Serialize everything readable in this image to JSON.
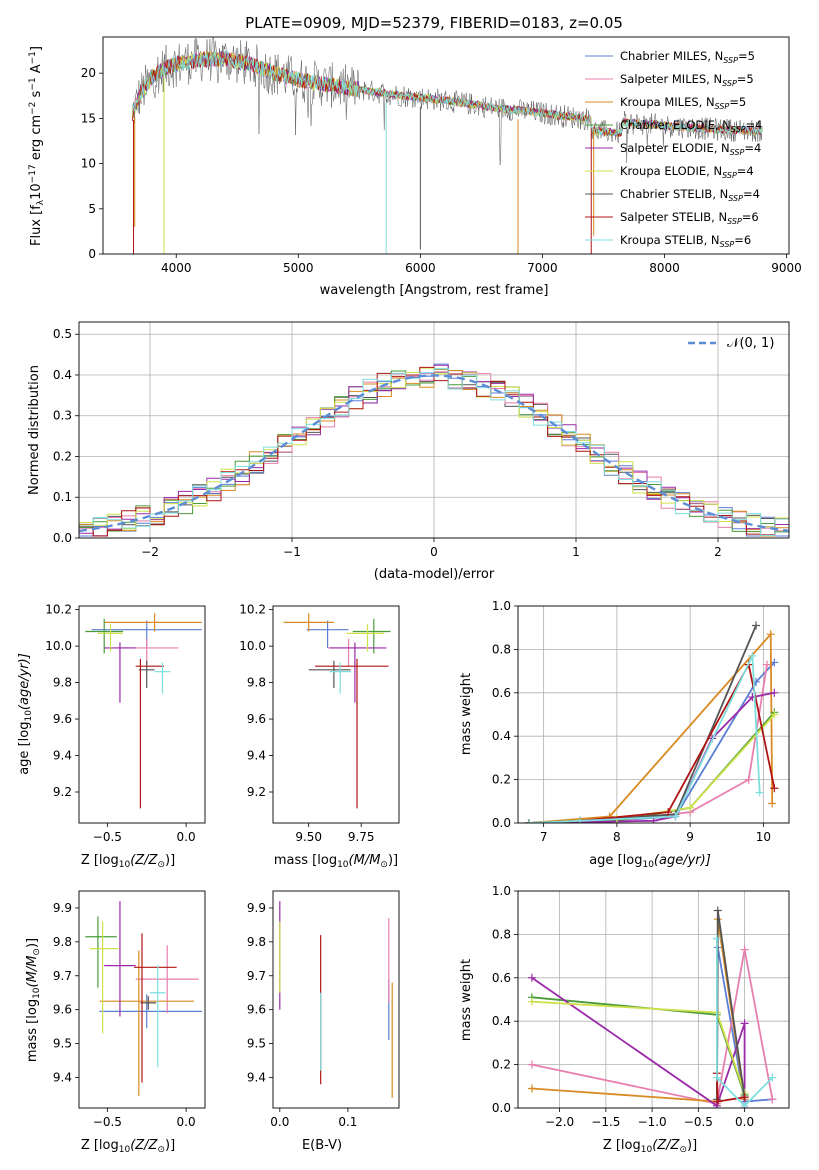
{
  "figure": {
    "title": "PLATE=0909, MJD=52379, FIBERID=0183, z=0.05"
  },
  "series": [
    {
      "name": "Chabrier MILES, N$_{SSP}$=5",
      "label_main": "Chabrier MILES, N",
      "label_sub": "SSP",
      "label_tail": "=5",
      "color": "#5b7fd6"
    },
    {
      "name": "Salpeter MILES, N$_{SSP}$=5",
      "label_main": "Salpeter MILES, N",
      "label_sub": "SSP",
      "label_tail": "=5",
      "color": "#e87fae"
    },
    {
      "name": "Kroupa MILES, N$_{SSP}$=5",
      "label_main": "Kroupa MILES, N",
      "label_sub": "SSP",
      "label_tail": "=5",
      "color": "#d98a22"
    },
    {
      "name": "Chabrier ELODIE, N$_{SSP}$=4",
      "label_main": "Chabrier ELODIE, N",
      "label_sub": "SSP",
      "label_tail": "=4",
      "color": "#4a9b3a"
    },
    {
      "name": "Salpeter ELODIE, N$_{SSP}$=4",
      "label_main": "Salpeter ELODIE, N",
      "label_sub": "SSP",
      "label_tail": "=4",
      "color": "#9b2aa8"
    },
    {
      "name": "Kroupa ELODIE, N$_{SSP}$=4",
      "label_main": "Kroupa ELODIE, N",
      "label_sub": "SSP",
      "label_tail": "=4",
      "color": "#cfe04a"
    },
    {
      "name": "Chabrier STELIB, N$_{SSP}$=4",
      "label_main": "Chabrier STELIB, N",
      "label_sub": "SSP",
      "label_tail": "=4",
      "color": "#555555"
    },
    {
      "name": "Salpeter STELIB, N$_{SSP}$=6",
      "label_main": "Salpeter STELIB, N",
      "label_sub": "SSP",
      "label_tail": "=6",
      "color": "#b01414"
    },
    {
      "name": "Kroupa STELIB, N$_{SSP}$=6",
      "label_main": "Kroupa STELIB, N",
      "label_sub": "SSP",
      "label_tail": "=6",
      "color": "#7fdede"
    }
  ],
  "chart_data": [
    {
      "id": "spectrum",
      "type": "line",
      "xlabel": "wavelength [Angstrom, rest frame]",
      "ylabel_main": "Flux [f",
      "ylabel_rest": "10",
      "ylabel_exp1": "−17",
      "ylabel_mid": " erg cm",
      "ylabel_exp2": "−2",
      "ylabel_mid2": " s",
      "ylabel_exp3": "−1",
      "ylabel_end": " A",
      "ylabel_exp4": "−1",
      "ylabel_close": "]",
      "xlim": [
        3400,
        9020
      ],
      "ylim": [
        0,
        24
      ],
      "xticks": [
        4000,
        5000,
        6000,
        7000,
        8000,
        9000
      ],
      "yticks": [
        0,
        5,
        10,
        15,
        20
      ],
      "grid": false,
      "legend": "upper-right",
      "continuum": {
        "x": [
          3640,
          3700,
          3800,
          3900,
          4000,
          4200,
          4400,
          4600,
          4800,
          5000,
          5200,
          5400,
          5600,
          5800,
          6000,
          6200,
          6400,
          6600,
          6800,
          7000,
          7200,
          7400,
          7600,
          7800,
          8000,
          8200,
          8400,
          8600,
          8800
        ],
        "y": [
          15.5,
          17.5,
          19.5,
          20.5,
          21.0,
          21.5,
          21.6,
          21.0,
          20.0,
          19.3,
          18.8,
          18.4,
          18.0,
          17.6,
          17.3,
          17.0,
          16.6,
          16.2,
          15.9,
          15.6,
          15.2,
          14.9,
          14.6,
          14.4,
          14.2,
          14.0,
          13.8,
          13.7,
          13.6
        ]
      },
      "dips": [
        {
          "x": 3650,
          "y": 0
        },
        {
          "x": 3660,
          "y": 3
        },
        {
          "x": 3900,
          "y": 0
        },
        {
          "x": 5720,
          "y": 0
        },
        {
          "x": 6000,
          "y": 0.5
        },
        {
          "x": 6800,
          "y": 0
        },
        {
          "x": 7400,
          "y": 0
        },
        {
          "x": 7420,
          "y": 2
        }
      ]
    },
    {
      "id": "residuals",
      "type": "step-histogram",
      "xlabel": "(data-model)/error",
      "ylabel": "Normed distribution",
      "xlim": [
        -2.5,
        2.5
      ],
      "ylim": [
        0,
        0.53
      ],
      "xticks": [
        -2,
        -1,
        0,
        1,
        2
      ],
      "yticks": [
        0.0,
        0.1,
        0.2,
        0.3,
        0.4,
        0.5
      ],
      "grid": true,
      "legend": "upper-right",
      "reference_label": "$\\mathcal{N}(0,1)$",
      "reference_label_display": "𝒩(0, 1)",
      "reference": {
        "name": "N(0,1)",
        "mean": 0,
        "sigma": 1,
        "color": "#5b8ed6"
      },
      "bin_width": 0.1
    },
    {
      "id": "age_vs_Z",
      "type": "errorbar",
      "xlabel_main": "Z [log",
      "xlabel_sub": "10",
      "xlabel_arg": "(Z/Z",
      "xlabel_sun": "⊙",
      "xlabel_close": ")]",
      "ylabel_main": "age  [log",
      "ylabel_sub": "10",
      "ylabel_arg": "(age/yr)]",
      "xlim": [
        -0.68,
        0.12
      ],
      "ylim": [
        9.03,
        10.22
      ],
      "xticks": [
        -0.5,
        0.0
      ],
      "yticks": [
        9.2,
        9.4,
        9.6,
        9.8,
        10.0,
        10.2
      ],
      "points": [
        {
          "x": -0.25,
          "y": 10.09,
          "xerr": [
            0.35,
            0.35
          ],
          "yerr": [
            0.1,
            0.05
          ],
          "series": 0
        },
        {
          "x": -0.25,
          "y": 9.99,
          "xerr": [
            0.2,
            0.2
          ],
          "yerr": [
            0.1,
            0.05
          ],
          "series": 1
        },
        {
          "x": -0.2,
          "y": 10.13,
          "xerr": [
            0.32,
            0.3
          ],
          "yerr": [
            0.05,
            0.05
          ],
          "series": 2
        },
        {
          "x": -0.52,
          "y": 10.08,
          "xerr": [
            0.12,
            0.12
          ],
          "yerr": [
            0.12,
            0.07
          ],
          "series": 3
        },
        {
          "x": -0.42,
          "y": 9.99,
          "xerr": [
            0.1,
            0.1
          ],
          "yerr": [
            0.3,
            0.03
          ],
          "series": 4
        },
        {
          "x": -0.48,
          "y": 10.07,
          "xerr": [
            0.08,
            0.08
          ],
          "yerr": [
            0.1,
            0.05
          ],
          "series": 5
        },
        {
          "x": -0.25,
          "y": 9.87,
          "xerr": [
            0.05,
            0.05
          ],
          "yerr": [
            0.1,
            0.05
          ],
          "series": 6
        },
        {
          "x": -0.29,
          "y": 9.89,
          "xerr": [
            0.03,
            0.15
          ],
          "yerr": [
            0.78,
            0.04
          ],
          "series": 7
        },
        {
          "x": -0.15,
          "y": 9.86,
          "xerr": [
            0.05,
            0.05
          ],
          "yerr": [
            0.12,
            0.05
          ],
          "series": 8
        }
      ]
    },
    {
      "id": "age_vs_mass",
      "type": "errorbar",
      "xlabel_main": "mass [log",
      "xlabel_sub": "10",
      "xlabel_arg": "(M/M",
      "xlabel_sun": "⊙",
      "xlabel_close": ")]",
      "xlim": [
        9.33,
        9.93
      ],
      "ylim": [
        9.03,
        10.22
      ],
      "xticks": [
        9.5,
        9.75
      ],
      "yticks": [
        9.2,
        9.4,
        9.6,
        9.8,
        10.0,
        10.2
      ],
      "points": [
        {
          "x": 9.59,
          "y": 10.09,
          "xerr": [
            0.1,
            0.1
          ],
          "yerr": [
            0.1,
            0.05
          ],
          "series": 0
        },
        {
          "x": 9.69,
          "y": 9.99,
          "xerr": [
            0.1,
            0.08
          ],
          "yerr": [
            0.1,
            0.05
          ],
          "series": 1
        },
        {
          "x": 9.5,
          "y": 10.13,
          "xerr": [
            0.12,
            0.12
          ],
          "yerr": [
            0.05,
            0.05
          ],
          "series": 2
        },
        {
          "x": 9.81,
          "y": 10.08,
          "xerr": [
            0.1,
            0.08
          ],
          "yerr": [
            0.12,
            0.07
          ],
          "series": 3
        },
        {
          "x": 9.72,
          "y": 9.99,
          "xerr": [
            0.12,
            0.15
          ],
          "yerr": [
            0.3,
            0.03
          ],
          "series": 4
        },
        {
          "x": 9.78,
          "y": 10.07,
          "xerr": [
            0.1,
            0.08
          ],
          "yerr": [
            0.1,
            0.05
          ],
          "series": 5
        },
        {
          "x": 9.62,
          "y": 9.87,
          "xerr": [
            0.12,
            0.08
          ],
          "yerr": [
            0.1,
            0.05
          ],
          "series": 6
        },
        {
          "x": 9.73,
          "y": 9.89,
          "xerr": [
            0.2,
            0.15
          ],
          "yerr": [
            0.78,
            0.04
          ],
          "series": 7
        },
        {
          "x": 9.65,
          "y": 9.86,
          "xerr": [
            0.05,
            0.05
          ],
          "yerr": [
            0.12,
            0.05
          ],
          "series": 8
        }
      ]
    },
    {
      "id": "mass_weight_vs_age",
      "type": "line",
      "xlabel_main": "age  [log",
      "xlabel_sub": "10",
      "xlabel_arg": "(age/yr)]",
      "ylabel": "mass weight",
      "xlim": [
        6.65,
        10.35
      ],
      "ylim": [
        0,
        1.0
      ],
      "xticks": [
        7,
        8,
        9,
        10
      ],
      "yticks": [
        0.0,
        0.2,
        0.4,
        0.6,
        0.8,
        1.0
      ],
      "grid": true,
      "lines": [
        {
          "series": 0,
          "x": [
            6.8,
            7.9,
            8.8,
            9.9,
            10.15
          ],
          "y": [
            0.0,
            0.01,
            0.03,
            0.65,
            0.74
          ]
        },
        {
          "series": 1,
          "x": [
            6.8,
            8.0,
            9.0,
            9.8,
            10.05
          ],
          "y": [
            0.0,
            0.01,
            0.05,
            0.2,
            0.73
          ]
        },
        {
          "series": 2,
          "x": [
            6.8,
            7.9,
            10.1,
            10.12
          ],
          "y": [
            0.0,
            0.03,
            0.87,
            0.09
          ]
        },
        {
          "series": 3,
          "x": [
            6.8,
            8.0,
            9.0,
            10.15
          ],
          "y": [
            0.0,
            0.01,
            0.07,
            0.51
          ]
        },
        {
          "series": 4,
          "x": [
            6.8,
            8.5,
            8.8,
            9.3,
            9.85,
            10.15
          ],
          "y": [
            0.0,
            0.01,
            0.03,
            0.39,
            0.58,
            0.6
          ]
        },
        {
          "series": 5,
          "x": [
            6.8,
            8.0,
            9.0,
            10.15
          ],
          "y": [
            0.0,
            0.02,
            0.07,
            0.5
          ]
        },
        {
          "series": 6,
          "x": [
            6.8,
            7.5,
            8.8,
            9.9
          ],
          "y": [
            0.0,
            0.01,
            0.04,
            0.91
          ]
        },
        {
          "series": 7,
          "x": [
            6.8,
            7.5,
            8.7,
            9.8,
            10.15
          ],
          "y": [
            0.0,
            0.01,
            0.05,
            0.73,
            0.16
          ]
        },
        {
          "series": 8,
          "x": [
            6.8,
            7.5,
            8.8,
            9.85,
            9.95
          ],
          "y": [
            0.0,
            0.01,
            0.03,
            0.77,
            0.14
          ]
        }
      ]
    },
    {
      "id": "mass_vs_Z",
      "type": "errorbar",
      "xlabel_main": "Z [log",
      "xlabel_sub": "10",
      "xlabel_arg": "(Z/Z",
      "xlabel_sun": "⊙",
      "xlabel_close": ")]",
      "ylabel_main": "mass [log",
      "ylabel_sub": "10",
      "ylabel_arg": "(M/M",
      "ylabel_sun": "⊙",
      "ylabel_close": ")]",
      "xlim": [
        -0.68,
        0.12
      ],
      "ylim": [
        9.31,
        9.95
      ],
      "xticks": [
        -0.5,
        0.0
      ],
      "yticks": [
        9.4,
        9.5,
        9.6,
        9.7,
        9.8,
        9.9
      ],
      "points": [
        {
          "x": -0.25,
          "y": 9.595,
          "xerr": [
            0.3,
            0.35
          ],
          "yerr": [
            0.05,
            0.05
          ],
          "series": 0
        },
        {
          "x": -0.12,
          "y": 9.69,
          "xerr": [
            0.2,
            0.2
          ],
          "yerr": [
            0.1,
            0.1
          ],
          "series": 1
        },
        {
          "x": -0.3,
          "y": 9.625,
          "xerr": [
            0.25,
            0.35
          ],
          "yerr": [
            0.28,
            0.15
          ],
          "series": 2
        },
        {
          "x": -0.56,
          "y": 9.815,
          "xerr": [
            0.08,
            0.12
          ],
          "yerr": [
            0.15,
            0.06
          ],
          "series": 3
        },
        {
          "x": -0.42,
          "y": 9.73,
          "xerr": [
            0.1,
            0.1
          ],
          "yerr": [
            0.15,
            0.19
          ],
          "series": 4
        },
        {
          "x": -0.53,
          "y": 9.78,
          "xerr": [
            0.08,
            0.1
          ],
          "yerr": [
            0.25,
            0.08
          ],
          "series": 5
        },
        {
          "x": -0.24,
          "y": 9.62,
          "xerr": [
            0.05,
            0.05
          ],
          "yerr": [
            0.02,
            0.02
          ],
          "series": 6
        },
        {
          "x": -0.28,
          "y": 9.725,
          "xerr": [
            0.05,
            0.22
          ],
          "yerr": [
            0.34,
            0.1
          ],
          "series": 7
        },
        {
          "x": -0.18,
          "y": 9.65,
          "xerr": [
            0.05,
            0.05
          ],
          "yerr": [
            0.22,
            0.08
          ],
          "series": 8
        }
      ]
    },
    {
      "id": "mass_vs_EBV",
      "type": "errorbar",
      "xlabel": "E(B-V)",
      "xlim": [
        -0.01,
        0.175
      ],
      "ylim": [
        9.31,
        9.95
      ],
      "xticks": [
        0.0,
        0.1
      ],
      "yticks": [
        9.4,
        9.5,
        9.6,
        9.7,
        9.8,
        9.9
      ],
      "points": [
        {
          "x": 0.0,
          "y": 9.75,
          "xerr": [
            0,
            0
          ],
          "yerr": [
            0.15,
            0.17
          ],
          "series": 4
        },
        {
          "x": 0.0,
          "y": 9.78,
          "xerr": [
            0,
            0
          ],
          "yerr": [
            0.13,
            0.08
          ],
          "series": 5
        },
        {
          "x": 0.06,
          "y": 9.7,
          "xerr": [
            0,
            0
          ],
          "yerr": [
            0.32,
            0.12
          ],
          "series": 7
        },
        {
          "x": 0.06,
          "y": 9.6,
          "xerr": [
            0,
            0
          ],
          "yerr": [
            0.18,
            0.05
          ],
          "series": 8
        },
        {
          "x": 0.16,
          "y": 9.59,
          "xerr": [
            0,
            0
          ],
          "yerr": [
            0.08,
            0.1
          ],
          "series": 0
        },
        {
          "x": 0.16,
          "y": 9.72,
          "xerr": [
            0,
            0
          ],
          "yerr": [
            0.1,
            0.15
          ],
          "series": 1
        },
        {
          "x": 0.165,
          "y": 9.5,
          "xerr": [
            0,
            0
          ],
          "yerr": [
            0.16,
            0.18
          ],
          "series": 2
        }
      ]
    },
    {
      "id": "mass_weight_vs_Z",
      "type": "line",
      "xlabel_main": "Z [log",
      "xlabel_sub": "10",
      "xlabel_arg": "(Z/Z",
      "xlabel_sun": "⊙",
      "xlabel_close": ")]",
      "ylabel": "mass weight",
      "xlim": [
        -2.45,
        0.48
      ],
      "ylim": [
        0,
        1.0
      ],
      "xticks": [
        -2.0,
        -1.5,
        -1.0,
        -0.5,
        0.0
      ],
      "yticks": [
        0.0,
        0.2,
        0.4,
        0.6,
        0.8,
        1.0
      ],
      "grid": true,
      "lines": [
        {
          "series": 0,
          "x": [
            -0.3,
            -0.29,
            0.0,
            0.3
          ],
          "y": [
            0.0,
            0.74,
            0.03,
            0.04
          ]
        },
        {
          "series": 1,
          "x": [
            -2.3,
            -0.3,
            0.0,
            0.3
          ],
          "y": [
            0.2,
            0.02,
            0.73,
            0.04
          ]
        },
        {
          "series": 2,
          "x": [
            -2.3,
            -0.3,
            -0.29,
            0.0
          ],
          "y": [
            0.09,
            0.03,
            0.87,
            0.04
          ]
        },
        {
          "series": 3,
          "x": [
            -2.3,
            -0.3,
            0.0
          ],
          "y": [
            0.51,
            0.43,
            0.06
          ]
        },
        {
          "series": 4,
          "x": [
            -2.3,
            -0.3,
            0.0,
            0.0
          ],
          "y": [
            0.6,
            0.01,
            0.39,
            0.0
          ]
        },
        {
          "series": 5,
          "x": [
            -2.3,
            -0.3,
            0.0
          ],
          "y": [
            0.49,
            0.44,
            0.07
          ]
        },
        {
          "series": 6,
          "x": [
            -0.3,
            -0.29,
            0.0
          ],
          "y": [
            0.04,
            0.91,
            0.05
          ]
        },
        {
          "series": 7,
          "x": [
            -0.3,
            -0.29,
            0.0
          ],
          "y": [
            0.16,
            0.03,
            0.05
          ]
        },
        {
          "series": 8,
          "x": [
            -0.3,
            -0.3,
            0.0,
            0.3
          ],
          "y": [
            0.78,
            0.14,
            0.01,
            0.14
          ]
        }
      ]
    }
  ]
}
